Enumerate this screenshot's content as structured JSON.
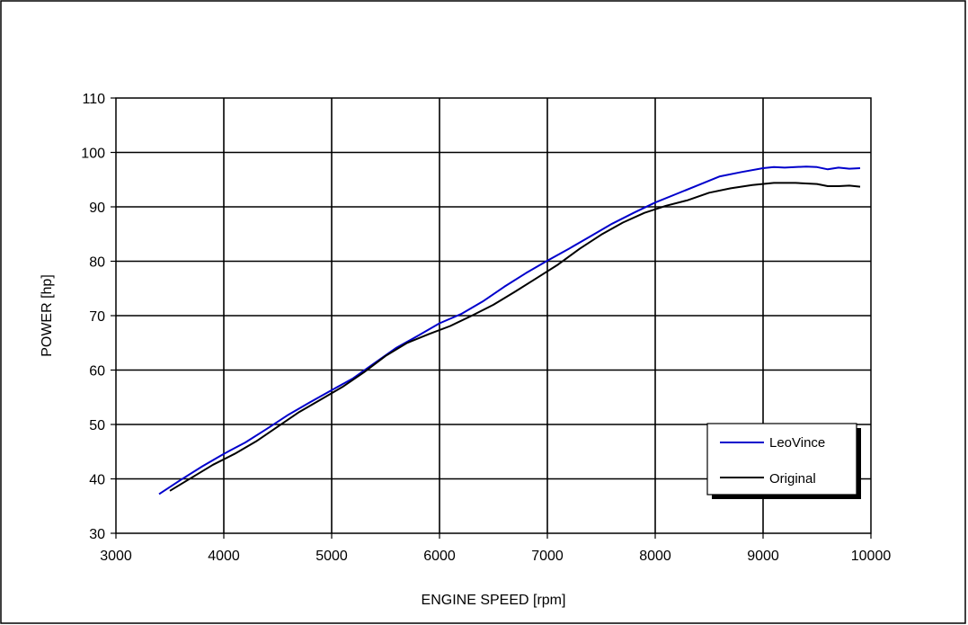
{
  "chart_data": {
    "type": "line",
    "title": "",
    "xlabel": "ENGINE SPEED [rpm]",
    "ylabel": "POWER [hp]",
    "xlim": [
      3000,
      10000
    ],
    "ylim": [
      30,
      110
    ],
    "x_ticks": [
      "3000",
      "4000",
      "5000",
      "6000",
      "7000",
      "8000",
      "9000",
      "10000"
    ],
    "y_ticks": [
      "30",
      "40",
      "50",
      "60",
      "70",
      "80",
      "90",
      "100",
      "110"
    ],
    "grid": true,
    "legend_position": "bottom-right",
    "series": [
      {
        "name": "LeoVince",
        "color": "#0000cc",
        "x": [
          3400,
          3600,
          3800,
          4000,
          4200,
          4400,
          4600,
          4800,
          5000,
          5200,
          5400,
          5600,
          5800,
          6000,
          6200,
          6400,
          6600,
          6800,
          7000,
          7200,
          7400,
          7600,
          7800,
          8000,
          8200,
          8400,
          8600,
          8800,
          9000,
          9100,
          9200,
          9300,
          9400,
          9500,
          9600,
          9700,
          9800,
          9900
        ],
        "y": [
          37.2,
          39.8,
          42.3,
          44.6,
          46.7,
          49.2,
          51.8,
          54.1,
          56.3,
          58.5,
          61.3,
          64.1,
          66.3,
          68.6,
          70.3,
          72.6,
          75.3,
          77.8,
          80.1,
          82.3,
          84.6,
          86.9,
          88.9,
          90.8,
          92.4,
          94.0,
          95.6,
          96.4,
          97.1,
          97.3,
          97.2,
          97.3,
          97.4,
          97.3,
          96.9,
          97.2,
          97.0,
          97.1
        ]
      },
      {
        "name": "Original",
        "color": "#000000",
        "x": [
          3500,
          3700,
          3900,
          4100,
          4300,
          4500,
          4700,
          4900,
          5100,
          5300,
          5500,
          5700,
          5900,
          6100,
          6300,
          6500,
          6700,
          6900,
          7100,
          7300,
          7500,
          7700,
          7900,
          8100,
          8300,
          8500,
          8700,
          8900,
          9100,
          9300,
          9500,
          9600,
          9700,
          9800,
          9900
        ],
        "y": [
          37.8,
          40.2,
          42.6,
          44.6,
          46.9,
          49.6,
          52.3,
          54.6,
          56.9,
          59.6,
          62.6,
          65.0,
          66.6,
          68.1,
          70.0,
          72.0,
          74.4,
          76.9,
          79.4,
          82.3,
          84.9,
          87.1,
          88.9,
          90.2,
          91.2,
          92.6,
          93.4,
          94.0,
          94.4,
          94.4,
          94.2,
          93.8,
          93.8,
          93.9,
          93.7
        ]
      }
    ]
  }
}
